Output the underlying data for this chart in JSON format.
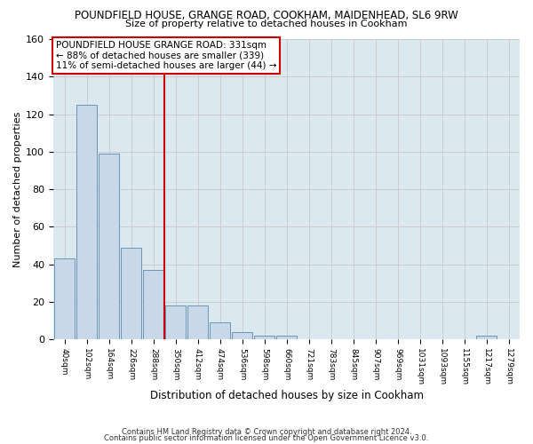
{
  "title1": "POUNDFIELD HOUSE, GRANGE ROAD, COOKHAM, MAIDENHEAD, SL6 9RW",
  "title2": "Size of property relative to detached houses in Cookham",
  "xlabel": "Distribution of detached houses by size in Cookham",
  "ylabel": "Number of detached properties",
  "categories": [
    "40sqm",
    "102sqm",
    "164sqm",
    "226sqm",
    "288sqm",
    "350sqm",
    "412sqm",
    "474sqm",
    "536sqm",
    "598sqm",
    "660sqm",
    "721sqm",
    "783sqm",
    "845sqm",
    "907sqm",
    "969sqm",
    "1031sqm",
    "1093sqm",
    "1155sqm",
    "1217sqm",
    "1279sqm"
  ],
  "values": [
    43,
    125,
    99,
    49,
    37,
    18,
    18,
    9,
    4,
    2,
    2,
    0,
    0,
    0,
    0,
    0,
    0,
    0,
    0,
    2,
    0
  ],
  "bar_color": "#c8d8e8",
  "bar_edge_color": "#5a8ab0",
  "vline_x": 4.5,
  "vline_color": "#cc0000",
  "annotation_lines": [
    "POUNDFIELD HOUSE GRANGE ROAD: 331sqm",
    "← 88% of detached houses are smaller (339)",
    "11% of semi-detached houses are larger (44) →"
  ],
  "annotation_box_color": "#cc0000",
  "ylim": [
    0,
    160
  ],
  "yticks": [
    0,
    20,
    40,
    60,
    80,
    100,
    120,
    140,
    160
  ],
  "grid_color": "#cccccc",
  "background_color": "#dce8f0",
  "footer1": "Contains HM Land Registry data © Crown copyright and database right 2024.",
  "footer2": "Contains public sector information licensed under the Open Government Licence v3.0."
}
